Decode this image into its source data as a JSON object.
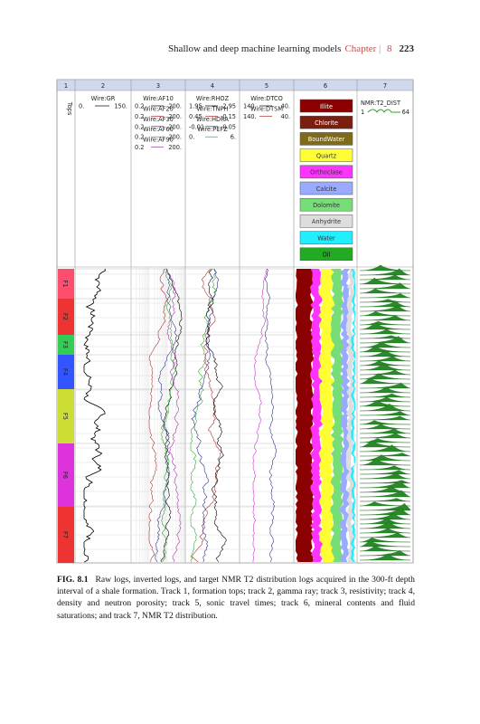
{
  "header": {
    "running_title": "Shallow and deep machine learning models",
    "chapter": "Chapter",
    "chapter_number": "8",
    "page_number": "223"
  },
  "figure": {
    "track_numbers": [
      "1",
      "2",
      "3",
      "4",
      "5",
      "6",
      "7"
    ],
    "tops_label": "Tops",
    "tracks": [
      {
        "curves": [
          {
            "name": "Wire:GR",
            "left": "0.",
            "right": "150."
          }
        ]
      },
      {
        "curves": [
          {
            "name": "Wire:AF10",
            "left": "0.2",
            "right": "200."
          },
          {
            "name": "Wire:AF20",
            "left": "0.2",
            "right": "200."
          },
          {
            "name": "Wire:AF30",
            "left": "0.2",
            "right": "200."
          },
          {
            "name": "Wire:AF60",
            "left": "0.2",
            "right": "200."
          },
          {
            "name": "Wire:AF90",
            "left": "0.2",
            "right": "200."
          }
        ]
      },
      {
        "curves": [
          {
            "name": "Wire:RHOZ",
            "left": "1.95",
            "right": "2.95"
          },
          {
            "name": "Wire:TNPH",
            "left": "0.45",
            "right": "-0.15"
          },
          {
            "name": "Wire:HDRA",
            "left": "-0.01",
            "right": "0.05"
          },
          {
            "name": "Wire:PEFZ",
            "left": "0.",
            "right": "6."
          }
        ]
      },
      {
        "curves": [
          {
            "name": "Wire:DTCO",
            "left": "140.",
            "right": "40."
          },
          {
            "name": "Wire:DTSM",
            "left": "140.",
            "right": "40."
          }
        ]
      }
    ],
    "minerals": [
      {
        "name": "Illite",
        "color": "#8b0000",
        "text_color": "#ffffff"
      },
      {
        "name": "Chlorite",
        "color": "#7a1f10",
        "text_color": "#ffffff"
      },
      {
        "name": "BoundWater",
        "color": "#7f6a1a",
        "text_color": "#ffffff"
      },
      {
        "name": "Quartz",
        "color": "#ffff33",
        "text_color": "#333333"
      },
      {
        "name": "Orthoclase",
        "color": "#ff33ff",
        "text_color": "#333333"
      },
      {
        "name": "Calcite",
        "color": "#99aaff",
        "text_color": "#333333"
      },
      {
        "name": "Dolomite",
        "color": "#77dd77",
        "text_color": "#333333"
      },
      {
        "name": "Anhydrite",
        "color": "#dddddd",
        "text_color": "#333333"
      },
      {
        "name": "Water",
        "color": "#22eeff",
        "text_color": "#333333"
      },
      {
        "name": "Oil",
        "color": "#22aa22",
        "text_color": "#111111"
      }
    ],
    "nmr": {
      "name": "NMR:T2_DIST",
      "left": "1",
      "right": "64"
    },
    "tops": [
      {
        "name": "F1",
        "color": "#ff4d6d"
      },
      {
        "name": "F2",
        "color": "#ee3333"
      },
      {
        "name": "F3",
        "color": "#33cc55"
      },
      {
        "name": "F4",
        "color": "#3355ff"
      },
      {
        "name": "F5",
        "color": "#ccdd33"
      },
      {
        "name": "F6",
        "color": "#dd33dd"
      },
      {
        "name": "F7",
        "color": "#ee3333"
      }
    ]
  },
  "caption": {
    "label": "FIG. 8.1",
    "text": "Raw logs, inverted logs, and target NMR T2 distribution logs acquired in the 300-ft depth interval of a shale formation. Track 1, formation tops; track 2, gamma ray; track 3, resistivity; track 4, density and neutron porosity; track 5, sonic travel times; track 6, mineral contents and fluid saturations; and track 7, NMR T2 distribution."
  }
}
